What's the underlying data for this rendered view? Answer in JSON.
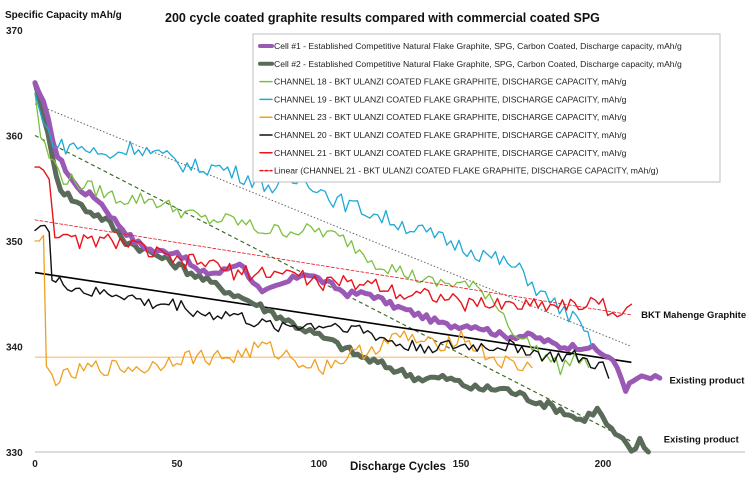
{
  "chart_data": {
    "type": "line",
    "title": "200 cycle coated graphite results compared with commercial coated SPG",
    "ylabel": "Specific Capacity mAh/g",
    "xlabel": "Discharge Cycles",
    "xlim": [
      0,
      250
    ],
    "ylim": [
      330,
      370
    ],
    "xticks": [
      0,
      50,
      100,
      150,
      200
    ],
    "yticks": [
      330,
      340,
      350,
      360,
      370
    ],
    "grid": false,
    "legend_position": "top-right",
    "series": [
      {
        "name": "Cell #1 - Established Competitive Natural Flake Graphite, SPG, Carbon Coated, Discharge capacity, mAh/g",
        "color": "#9b59b6",
        "width": 5,
        "points": [
          [
            0,
            365
          ],
          [
            3,
            363
          ],
          [
            8,
            358
          ],
          [
            15,
            355
          ],
          [
            22,
            354
          ],
          [
            28,
            352
          ],
          [
            35,
            350
          ],
          [
            42,
            349
          ],
          [
            50,
            349
          ],
          [
            58,
            347
          ],
          [
            65,
            347
          ],
          [
            72,
            348
          ],
          [
            80,
            345
          ],
          [
            88,
            346
          ],
          [
            95,
            347
          ],
          [
            103,
            346
          ],
          [
            110,
            345
          ],
          [
            118,
            345
          ],
          [
            125,
            344
          ],
          [
            135,
            343
          ],
          [
            145,
            342
          ],
          [
            155,
            342
          ],
          [
            165,
            341
          ],
          [
            175,
            341
          ],
          [
            185,
            340
          ],
          [
            195,
            340
          ],
          [
            202,
            339
          ],
          [
            205,
            338
          ],
          [
            208,
            336
          ],
          [
            212,
            337
          ],
          [
            220,
            337
          ]
        ]
      },
      {
        "name": "Cell #2 - Established Competitive Natural Flake Graphite, SPG, Carbon Coated, Discharge capacity, mAh/g",
        "color": "#5a6b5a",
        "width": 5,
        "points": [
          [
            0,
            365
          ],
          [
            3,
            362
          ],
          [
            6,
            358
          ],
          [
            9,
            355
          ],
          [
            13,
            354
          ],
          [
            18,
            353
          ],
          [
            25,
            352
          ],
          [
            32,
            350
          ],
          [
            40,
            349
          ],
          [
            48,
            348
          ],
          [
            55,
            347
          ],
          [
            62,
            346
          ],
          [
            70,
            345
          ],
          [
            78,
            344
          ],
          [
            85,
            343
          ],
          [
            92,
            342
          ],
          [
            100,
            341
          ],
          [
            108,
            340
          ],
          [
            115,
            339
          ],
          [
            125,
            338
          ],
          [
            135,
            337
          ],
          [
            145,
            337
          ],
          [
            155,
            336
          ],
          [
            165,
            336
          ],
          [
            175,
            335
          ],
          [
            185,
            334
          ],
          [
            192,
            333
          ],
          [
            198,
            334
          ],
          [
            203,
            332
          ],
          [
            207,
            331
          ],
          [
            210,
            330
          ],
          [
            213,
            331
          ],
          [
            216,
            330
          ]
        ]
      },
      {
        "name": "CHANNEL 18 - BKT ULANZI COATED FLAKE GRAPHITE, DISCHARGE CAPACITY, mAh/g",
        "color": "#7ac142",
        "width": 1.3,
        "points": [
          [
            0,
            364
          ],
          [
            2,
            360
          ],
          [
            5,
            358
          ],
          [
            10,
            356
          ],
          [
            20,
            355
          ],
          [
            30,
            354
          ],
          [
            40,
            354
          ],
          [
            50,
            353
          ],
          [
            60,
            352
          ],
          [
            70,
            352
          ],
          [
            80,
            351
          ],
          [
            90,
            351
          ],
          [
            100,
            351
          ],
          [
            110,
            350
          ],
          [
            120,
            348
          ],
          [
            130,
            347
          ],
          [
            140,
            346
          ],
          [
            150,
            346
          ],
          [
            160,
            345
          ],
          [
            165,
            343
          ],
          [
            170,
            341
          ],
          [
            175,
            340
          ],
          [
            180,
            339
          ],
          [
            185,
            338
          ],
          [
            190,
            339
          ],
          [
            195,
            338
          ]
        ]
      },
      {
        "name": "CHANNEL 19 - BKT ULANZI COATED FLAKE GRAPHITE, DISCHARGE CAPACITY, mAh/g",
        "color": "#1fa9d6",
        "width": 1.3,
        "points": [
          [
            0,
            364
          ],
          [
            3,
            361
          ],
          [
            8,
            359
          ],
          [
            15,
            359
          ],
          [
            25,
            358
          ],
          [
            35,
            359
          ],
          [
            45,
            358
          ],
          [
            55,
            357
          ],
          [
            65,
            357
          ],
          [
            75,
            356
          ],
          [
            85,
            355
          ],
          [
            95,
            356
          ],
          [
            105,
            354
          ],
          [
            115,
            353
          ],
          [
            125,
            352
          ],
          [
            135,
            351
          ],
          [
            145,
            350
          ],
          [
            155,
            349
          ],
          [
            165,
            348
          ],
          [
            172,
            347
          ],
          [
            178,
            345
          ],
          [
            183,
            344
          ],
          [
            188,
            343
          ],
          [
            192,
            342
          ],
          [
            196,
            340
          ]
        ]
      },
      {
        "name": "CHANNEL 23 - BKT ULANZI COATED FLAKE GRAPHITE, DISCHARGE CAPACITY, mAh/g",
        "color": "#f0a020",
        "width": 1.3,
        "points": [
          [
            0,
            350
          ],
          [
            3,
            350
          ],
          [
            4,
            338
          ],
          [
            6,
            337
          ],
          [
            10,
            337
          ],
          [
            20,
            338
          ],
          [
            30,
            338
          ],
          [
            40,
            338
          ],
          [
            50,
            339
          ],
          [
            60,
            339
          ],
          [
            70,
            339
          ],
          [
            80,
            340
          ],
          [
            90,
            339
          ],
          [
            100,
            338
          ],
          [
            110,
            339
          ],
          [
            120,
            340
          ],
          [
            130,
            341
          ],
          [
            140,
            340
          ],
          [
            150,
            341
          ],
          [
            160,
            339
          ],
          [
            170,
            338
          ],
          [
            175,
            338
          ]
        ]
      },
      {
        "name": "CHANNEL 20 - BKT ULANZI COATED FLAKE GRAPHITE, DISCHARGE CAPACITY, mAh/g",
        "color": "#111111",
        "width": 1.4,
        "points": [
          [
            0,
            351
          ],
          [
            2,
            352
          ],
          [
            5,
            351
          ],
          [
            6,
            346
          ],
          [
            10,
            346
          ],
          [
            20,
            345
          ],
          [
            30,
            345
          ],
          [
            40,
            344
          ],
          [
            50,
            344
          ],
          [
            60,
            343
          ],
          [
            70,
            343
          ],
          [
            80,
            342
          ],
          [
            90,
            342
          ],
          [
            100,
            342
          ],
          [
            110,
            342
          ],
          [
            120,
            341
          ],
          [
            130,
            340
          ],
          [
            140,
            340
          ],
          [
            150,
            340
          ],
          [
            160,
            340
          ],
          [
            170,
            340
          ],
          [
            180,
            339
          ],
          [
            190,
            339
          ],
          [
            200,
            338
          ],
          [
            202,
            337
          ]
        ]
      },
      {
        "name": "CHANNEL 21 - BKT ULANZI COATED FLAKE GRAPHITE, DISCHARGE CAPACITY, mAh/g",
        "color": "#e8141c",
        "width": 1.4,
        "points": [
          [
            0,
            357
          ],
          [
            3,
            357
          ],
          [
            5,
            356
          ],
          [
            7,
            351
          ],
          [
            10,
            350
          ],
          [
            20,
            350
          ],
          [
            30,
            350
          ],
          [
            40,
            349
          ],
          [
            50,
            348
          ],
          [
            60,
            348
          ],
          [
            70,
            347
          ],
          [
            80,
            347
          ],
          [
            90,
            347
          ],
          [
            100,
            346
          ],
          [
            110,
            346
          ],
          [
            120,
            346
          ],
          [
            130,
            345
          ],
          [
            140,
            345
          ],
          [
            150,
            344
          ],
          [
            160,
            344
          ],
          [
            170,
            344
          ],
          [
            180,
            344
          ],
          [
            190,
            344
          ],
          [
            200,
            344
          ],
          [
            205,
            343
          ],
          [
            210,
            344
          ]
        ]
      },
      {
        "name": "Linear (CHANNEL 21 - BKT ULANZI COATED FLAKE GRAPHITE, DISCHARGE CAPACITY, mAh/g)",
        "color": "#e8141c",
        "width": 0.8,
        "dash": "3,2",
        "points": [
          [
            0,
            352
          ],
          [
            210,
            343
          ]
        ]
      }
    ],
    "trendlines": [
      {
        "color": "#666666",
        "dash": "1.5,2",
        "width": 1,
        "points": [
          [
            0,
            363
          ],
          [
            210,
            340
          ]
        ]
      },
      {
        "color": "#3f6d2a",
        "dash": "4,3",
        "width": 1.2,
        "points": [
          [
            0,
            360
          ],
          [
            210,
            331
          ]
        ]
      },
      {
        "color": "#000000",
        "dash": "",
        "width": 1.6,
        "points": [
          [
            0,
            347
          ],
          [
            210,
            338.5
          ]
        ]
      },
      {
        "color": "#f0a020",
        "dash": "",
        "width": 0.8,
        "points": [
          [
            0,
            339
          ],
          [
            175,
            339
          ]
        ]
      }
    ],
    "annotations": [
      {
        "text": "BKT Mahenge Graphite",
        "x": 212,
        "y": 343
      },
      {
        "text": "Existing product",
        "x": 222,
        "y": 336.8
      },
      {
        "text": "Existing product",
        "x": 220,
        "y": 331.2
      }
    ]
  }
}
